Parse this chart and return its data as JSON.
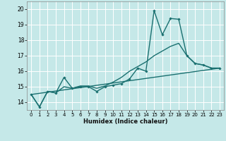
{
  "xlabel": "Humidex (Indice chaleur)",
  "xlim": [
    -0.5,
    23.5
  ],
  "ylim": [
    13.5,
    20.5
  ],
  "yticks": [
    14,
    15,
    16,
    17,
    18,
    19,
    20
  ],
  "xticks": [
    0,
    1,
    2,
    3,
    4,
    5,
    6,
    7,
    8,
    9,
    10,
    11,
    12,
    13,
    14,
    15,
    16,
    17,
    18,
    19,
    20,
    21,
    22,
    23
  ],
  "bg_color": "#c5e8e8",
  "grid_color": "#ffffff",
  "line_color": "#1a7070",
  "line1_x": [
    0,
    1,
    2,
    3,
    4,
    5,
    6,
    7,
    8,
    9,
    10,
    11,
    12,
    13,
    14,
    15,
    16,
    17,
    18,
    19,
    20,
    21,
    22,
    23
  ],
  "line1_y": [
    14.5,
    13.7,
    14.7,
    14.6,
    15.6,
    14.9,
    15.0,
    15.0,
    14.7,
    15.0,
    15.1,
    15.2,
    15.5,
    16.2,
    16.0,
    19.9,
    18.35,
    19.4,
    19.35,
    17.0,
    16.5,
    16.4,
    16.2,
    16.2
  ],
  "line2_x": [
    0,
    1,
    2,
    3,
    4,
    5,
    6,
    7,
    8,
    9,
    10,
    11,
    12,
    13,
    14,
    15,
    16,
    17,
    18,
    19,
    20,
    21,
    22,
    23
  ],
  "line2_y": [
    14.5,
    13.7,
    14.7,
    14.6,
    15.0,
    14.9,
    15.05,
    15.05,
    14.9,
    15.05,
    15.3,
    15.6,
    16.0,
    16.3,
    16.6,
    17.0,
    17.3,
    17.6,
    17.8,
    17.0,
    16.5,
    16.4,
    16.2,
    16.2
  ],
  "line3_x": [
    0,
    23
  ],
  "line3_y": [
    14.5,
    16.2
  ]
}
